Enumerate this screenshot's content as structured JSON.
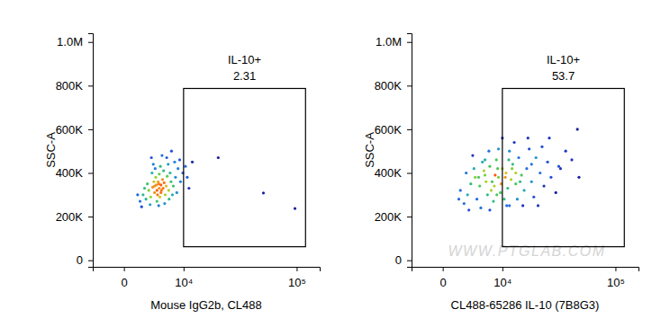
{
  "chart_data": [
    {
      "type": "scatter",
      "x_label": "Mouse IgG2b, CL488",
      "y_label": "SSC-A",
      "x": [
        4700,
        4200,
        5100,
        3900,
        5600,
        4400,
        3600,
        6000,
        5300,
        4800,
        3300,
        6500,
        4100,
        5800,
        3800,
        7000,
        4500,
        5000,
        3000,
        6200,
        2600,
        7500,
        4300,
        5500,
        3500,
        6800,
        2200,
        8000,
        4900,
        6400,
        2800,
        3200,
        5700,
        7300,
        8600,
        4000,
        9200,
        2400,
        6100,
        7800,
        1800,
        3700,
        5200,
        9800,
        8300,
        10500,
        2000,
        3400,
        7100,
        4600,
        11000,
        9000,
        1500,
        6600,
        4700,
        5400,
        3900,
        4300,
        5000,
        4600,
        22500,
        54700,
        97000,
        12500,
        11500
      ],
      "y": [
        330000,
        345000,
        320000,
        310000,
        355000,
        300000,
        335000,
        340000,
        370000,
        290000,
        290000,
        320000,
        380000,
        300000,
        360000,
        360000,
        360000,
        345000,
        320000,
        385000,
        280000,
        340000,
        270000,
        410000,
        400000,
        400000,
        300000,
        380000,
        430000,
        440000,
        350000,
        255000,
        260000,
        300000,
        420000,
        420000,
        360000,
        330000,
        470000,
        450000,
        270000,
        440000,
        480000,
        400000,
        310000,
        430000,
        245000,
        470000,
        500000,
        250000,
        380000,
        460000,
        300000,
        280000,
        395000,
        330000,
        340000,
        320000,
        310000,
        350000,
        470000,
        308000,
        237000,
        450000,
        330000
      ],
      "xlim": [
        -4000,
        150000
      ],
      "ylim": [
        -30000,
        1040000
      ],
      "xticks": [
        0,
        {
          "value": 10000,
          "label": "10⁴"
        },
        {
          "value": 100000,
          "label": "10⁵"
        }
      ],
      "yticks": [
        0,
        {
          "value": 200000,
          "label": "200K"
        },
        {
          "value": 400000,
          "label": "400K"
        },
        {
          "value": 600000,
          "label": "600K"
        },
        {
          "value": 800000,
          "label": "800K"
        },
        {
          "value": 1000000,
          "label": "1.0M"
        }
      ],
      "gate_label": "IL-10+",
      "gate_value": 2.31,
      "gate_x": [
        10000,
        117000
      ],
      "gate_y": [
        62000,
        787000
      ]
    },
    {
      "type": "scatter",
      "x_label": "CL488-65286 IL-10 (7B8G3)",
      "y_label": "SSC-A",
      "x": [
        9000,
        7500,
        11000,
        8000,
        12500,
        6000,
        10000,
        14000,
        5000,
        9500,
        13000,
        7000,
        16000,
        4200,
        11500,
        8500,
        18000,
        6500,
        15000,
        3500,
        20000,
        10500,
        5500,
        12000,
        24000,
        3000,
        17000,
        9000,
        7800,
        22000,
        2500,
        4500,
        26000,
        14500,
        6800,
        19000,
        2000,
        28000,
        11200,
        8800,
        30000,
        5200,
        13500,
        4000,
        21000,
        35000,
        3200,
        10000,
        16500,
        6200,
        2800,
        25000,
        40000,
        8200,
        12800,
        9700,
        7300,
        15500,
        11800,
        5800,
        1800,
        33000,
        45000,
        18500,
        7000,
        36200,
        51500,
        3800,
        23000,
        10800,
        20000,
        14000,
        8600,
        6000,
        29000,
        50000,
        12000,
        4800
      ],
      "y": [
        380000,
        360000,
        400000,
        340000,
        370000,
        390000,
        420000,
        350000,
        340000,
        310000,
        440000,
        430000,
        390000,
        380000,
        330000,
        460000,
        420000,
        300000,
        470000,
        350000,
        360000,
        280000,
        450000,
        500000,
        400000,
        300000,
        320000,
        510000,
        270000,
        470000,
        260000,
        280000,
        340000,
        280000,
        500000,
        510000,
        320000,
        450000,
        250000,
        420000,
        380000,
        240000,
        540000,
        420000,
        290000,
        430000,
        230000,
        560000,
        250000,
        360000,
        400000,
        520000,
        500000,
        390000,
        420000,
        350000,
        320000,
        360000,
        460000,
        410000,
        280000,
        310000,
        460000,
        560000,
        230000,
        420000,
        380000,
        480000,
        250000,
        380000,
        440000,
        400000,
        300000,
        460000,
        560000,
        600000,
        250000,
        380000
      ],
      "xlim": [
        -4000,
        150000
      ],
      "ylim": [
        -30000,
        1040000
      ],
      "xticks": [
        0,
        {
          "value": 10000,
          "label": "10⁴"
        },
        {
          "value": 100000,
          "label": "10⁵"
        }
      ],
      "yticks": [
        0,
        {
          "value": 200000,
          "label": "200K"
        },
        {
          "value": 400000,
          "label": "400K"
        },
        {
          "value": 600000,
          "label": "600K"
        },
        {
          "value": 800000,
          "label": "800K"
        },
        {
          "value": 1000000,
          "label": "1.0M"
        }
      ],
      "gate_label": "IL-10+",
      "gate_value": 53.7,
      "gate_x": [
        10000,
        117000
      ],
      "gate_y": [
        62000,
        787000
      ],
      "annotations": [
        "WWW.PTGLAB.COM"
      ]
    }
  ]
}
